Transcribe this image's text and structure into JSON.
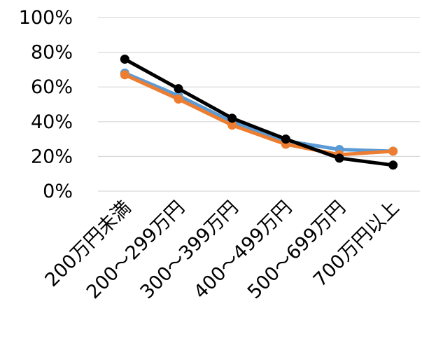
{
  "chart_data": {
    "type": "line",
    "title": "",
    "xlabel": "",
    "ylabel": "",
    "categories": [
      "200万円未満",
      "200～299万円",
      "300～399万円",
      "400～499万円",
      "500～699万円",
      "700万円以上"
    ],
    "y_ticks": [
      "0%",
      "20%",
      "40%",
      "60%",
      "80%",
      "100%"
    ],
    "ylim": [
      0,
      100
    ],
    "grid": true,
    "legend": "none",
    "series": [
      {
        "color": "#5b9bd5",
        "values": [
          68,
          55,
          40,
          29,
          24,
          23
        ]
      },
      {
        "color": "#ed7d31",
        "values": [
          67,
          53,
          38,
          27,
          21,
          23
        ]
      },
      {
        "color": "#000000",
        "values": [
          76,
          59,
          42,
          30,
          19,
          15
        ]
      }
    ]
  }
}
